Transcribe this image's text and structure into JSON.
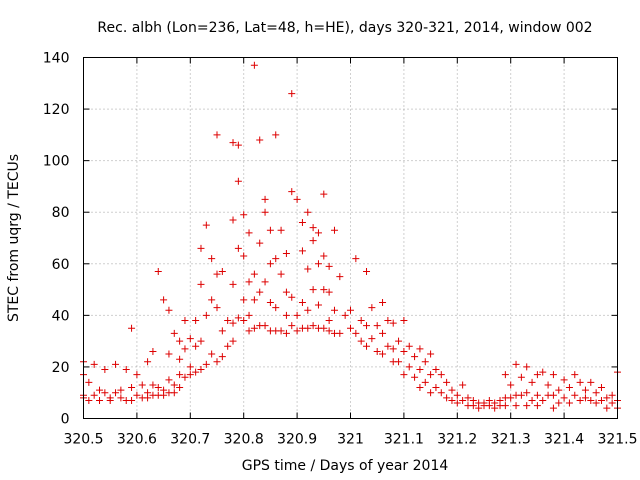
{
  "chart_data": {
    "type": "scatter",
    "title": "Rec. albh (Lon=236, Lat=48, h=HE), days 320-321, 2014, window 002",
    "xlabel": "GPS time / Days of year 2014",
    "ylabel": "STEC from uqrg / TECUs",
    "xlim": [
      320.5,
      321.5
    ],
    "ylim": [
      0,
      140
    ],
    "xticks": [
      "320.5",
      "320.6",
      "320.7",
      "320.8",
      "320.9",
      "321",
      "321.1",
      "321.2",
      "321.3",
      "321.4",
      "321.5"
    ],
    "yticks": [
      "0",
      "20",
      "40",
      "60",
      "80",
      "100",
      "120",
      "140"
    ],
    "grid": true,
    "marker": "+",
    "color": "#dd0000",
    "series": [
      {
        "name": "STEC",
        "points": [
          [
            320.5,
            22
          ],
          [
            320.5,
            17
          ],
          [
            320.5,
            9
          ],
          [
            320.5,
            8
          ],
          [
            320.51,
            14
          ],
          [
            320.51,
            7
          ],
          [
            320.52,
            21
          ],
          [
            320.52,
            9
          ],
          [
            320.53,
            11
          ],
          [
            320.53,
            7
          ],
          [
            320.54,
            19
          ],
          [
            320.54,
            10
          ],
          [
            320.55,
            8
          ],
          [
            320.55,
            7
          ],
          [
            320.56,
            21
          ],
          [
            320.56,
            10
          ],
          [
            320.57,
            11
          ],
          [
            320.57,
            8
          ],
          [
            320.58,
            19
          ],
          [
            320.58,
            7
          ],
          [
            320.59,
            12
          ],
          [
            320.59,
            7
          ],
          [
            320.6,
            17
          ],
          [
            320.6,
            9
          ],
          [
            320.61,
            13
          ],
          [
            320.61,
            8
          ],
          [
            320.62,
            10
          ],
          [
            320.62,
            8
          ],
          [
            320.63,
            13
          ],
          [
            320.63,
            9
          ],
          [
            320.64,
            12
          ],
          [
            320.64,
            9
          ],
          [
            320.65,
            11
          ],
          [
            320.65,
            9
          ],
          [
            320.66,
            15
          ],
          [
            320.66,
            10
          ],
          [
            320.67,
            13
          ],
          [
            320.67,
            10
          ],
          [
            320.68,
            17
          ],
          [
            320.68,
            12
          ],
          [
            320.59,
            35
          ],
          [
            320.62,
            22
          ],
          [
            320.63,
            26
          ],
          [
            320.64,
            57
          ],
          [
            320.65,
            46
          ],
          [
            320.66,
            42
          ],
          [
            320.66,
            25
          ],
          [
            320.67,
            33
          ],
          [
            320.68,
            30
          ],
          [
            320.68,
            23
          ],
          [
            320.69,
            38
          ],
          [
            320.69,
            27
          ],
          [
            320.69,
            16
          ],
          [
            320.7,
            31
          ],
          [
            320.7,
            20
          ],
          [
            320.7,
            17
          ],
          [
            320.71,
            38
          ],
          [
            320.71,
            28
          ],
          [
            320.71,
            18
          ],
          [
            320.72,
            66
          ],
          [
            320.72,
            52
          ],
          [
            320.72,
            30
          ],
          [
            320.72,
            19
          ],
          [
            320.73,
            75
          ],
          [
            320.73,
            40
          ],
          [
            320.73,
            21
          ],
          [
            320.74,
            62
          ],
          [
            320.74,
            46
          ],
          [
            320.74,
            25
          ],
          [
            320.75,
            110
          ],
          [
            320.75,
            56
          ],
          [
            320.75,
            43
          ],
          [
            320.75,
            22
          ],
          [
            320.76,
            57
          ],
          [
            320.76,
            34
          ],
          [
            320.76,
            24
          ],
          [
            320.77,
            38
          ],
          [
            320.77,
            28
          ],
          [
            320.78,
            107
          ],
          [
            320.78,
            77
          ],
          [
            320.78,
            52
          ],
          [
            320.78,
            37
          ],
          [
            320.78,
            30
          ],
          [
            320.79,
            106
          ],
          [
            320.79,
            92
          ],
          [
            320.79,
            66
          ],
          [
            320.79,
            39
          ],
          [
            320.8,
            79
          ],
          [
            320.8,
            63
          ],
          [
            320.8,
            46
          ],
          [
            320.8,
            38
          ],
          [
            320.81,
            72
          ],
          [
            320.81,
            53
          ],
          [
            320.81,
            40
          ],
          [
            320.81,
            34
          ],
          [
            320.82,
            137
          ],
          [
            320.82,
            56
          ],
          [
            320.82,
            46
          ],
          [
            320.82,
            35
          ],
          [
            320.83,
            108
          ],
          [
            320.83,
            68
          ],
          [
            320.83,
            49
          ],
          [
            320.83,
            36
          ],
          [
            320.84,
            85
          ],
          [
            320.84,
            80
          ],
          [
            320.84,
            53
          ],
          [
            320.84,
            36
          ],
          [
            320.85,
            73
          ],
          [
            320.85,
            60
          ],
          [
            320.85,
            45
          ],
          [
            320.85,
            34
          ],
          [
            320.86,
            110
          ],
          [
            320.86,
            62
          ],
          [
            320.86,
            43
          ],
          [
            320.86,
            34
          ],
          [
            320.87,
            73
          ],
          [
            320.87,
            56
          ],
          [
            320.87,
            34
          ],
          [
            320.88,
            64
          ],
          [
            320.88,
            49
          ],
          [
            320.88,
            40
          ],
          [
            320.88,
            33
          ],
          [
            320.89,
            126
          ],
          [
            320.89,
            88
          ],
          [
            320.89,
            47
          ],
          [
            320.89,
            36
          ],
          [
            320.9,
            85
          ],
          [
            320.9,
            40
          ],
          [
            320.9,
            34
          ],
          [
            320.91,
            76
          ],
          [
            320.91,
            65
          ],
          [
            320.91,
            45
          ],
          [
            320.91,
            35
          ],
          [
            320.92,
            80
          ],
          [
            320.92,
            58
          ],
          [
            320.92,
            42
          ],
          [
            320.92,
            35
          ],
          [
            320.93,
            74
          ],
          [
            320.93,
            69
          ],
          [
            320.93,
            50
          ],
          [
            320.93,
            36
          ],
          [
            320.94,
            72
          ],
          [
            320.94,
            60
          ],
          [
            320.94,
            44
          ],
          [
            320.94,
            35
          ],
          [
            320.95,
            87
          ],
          [
            320.95,
            63
          ],
          [
            320.95,
            50
          ],
          [
            320.95,
            35
          ],
          [
            320.96,
            59
          ],
          [
            320.96,
            49
          ],
          [
            320.96,
            38
          ],
          [
            320.96,
            34
          ],
          [
            320.97,
            73
          ],
          [
            320.97,
            42
          ],
          [
            320.97,
            33
          ],
          [
            320.98,
            55
          ],
          [
            320.98,
            33
          ],
          [
            320.99,
            40
          ],
          [
            321.0,
            42
          ],
          [
            321.0,
            35
          ],
          [
            321.01,
            62
          ],
          [
            321.01,
            33
          ],
          [
            321.02,
            38
          ],
          [
            321.02,
            30
          ],
          [
            321.03,
            57
          ],
          [
            321.03,
            36
          ],
          [
            321.03,
            28
          ],
          [
            321.04,
            43
          ],
          [
            321.04,
            31
          ],
          [
            321.05,
            36
          ],
          [
            321.05,
            26
          ],
          [
            321.06,
            45
          ],
          [
            321.06,
            33
          ],
          [
            321.06,
            25
          ],
          [
            321.07,
            38
          ],
          [
            321.07,
            28
          ],
          [
            321.08,
            37
          ],
          [
            321.08,
            27
          ],
          [
            321.08,
            22
          ],
          [
            321.09,
            30
          ],
          [
            321.09,
            22
          ],
          [
            321.1,
            38
          ],
          [
            321.1,
            26
          ],
          [
            321.1,
            17
          ],
          [
            321.11,
            28
          ],
          [
            321.11,
            20
          ],
          [
            321.12,
            24
          ],
          [
            321.12,
            16
          ],
          [
            321.13,
            27
          ],
          [
            321.13,
            19
          ],
          [
            321.13,
            12
          ],
          [
            321.14,
            22
          ],
          [
            321.14,
            14
          ],
          [
            321.15,
            25
          ],
          [
            321.15,
            17
          ],
          [
            321.15,
            10
          ],
          [
            321.16,
            19
          ],
          [
            321.16,
            12
          ],
          [
            321.17,
            17
          ],
          [
            321.17,
            10
          ],
          [
            321.18,
            14
          ],
          [
            321.18,
            8
          ],
          [
            321.19,
            11
          ],
          [
            321.19,
            7
          ],
          [
            321.2,
            9
          ],
          [
            321.2,
            6
          ],
          [
            321.21,
            13
          ],
          [
            321.21,
            7
          ],
          [
            321.22,
            8
          ],
          [
            321.22,
            5
          ],
          [
            321.23,
            7
          ],
          [
            321.23,
            5
          ],
          [
            321.24,
            6
          ],
          [
            321.24,
            4
          ],
          [
            321.25,
            6
          ],
          [
            321.25,
            5
          ],
          [
            321.26,
            7
          ],
          [
            321.26,
            5
          ],
          [
            321.27,
            6
          ],
          [
            321.27,
            4
          ],
          [
            321.28,
            7
          ],
          [
            321.28,
            5
          ],
          [
            321.29,
            17
          ],
          [
            321.29,
            8
          ],
          [
            321.29,
            5
          ],
          [
            321.3,
            13
          ],
          [
            321.3,
            8
          ],
          [
            321.31,
            21
          ],
          [
            321.31,
            9
          ],
          [
            321.31,
            5
          ],
          [
            321.32,
            16
          ],
          [
            321.32,
            9
          ],
          [
            321.33,
            20
          ],
          [
            321.33,
            10
          ],
          [
            321.33,
            5
          ],
          [
            321.34,
            14
          ],
          [
            321.34,
            7
          ],
          [
            321.35,
            17
          ],
          [
            321.35,
            9
          ],
          [
            321.35,
            5
          ],
          [
            321.36,
            18
          ],
          [
            321.36,
            7
          ],
          [
            321.37,
            13
          ],
          [
            321.37,
            9
          ],
          [
            321.38,
            17
          ],
          [
            321.38,
            9
          ],
          [
            321.38,
            4
          ],
          [
            321.39,
            11
          ],
          [
            321.39,
            6
          ],
          [
            321.4,
            15
          ],
          [
            321.4,
            8
          ],
          [
            321.41,
            12
          ],
          [
            321.41,
            6
          ],
          [
            321.42,
            17
          ],
          [
            321.42,
            9
          ],
          [
            321.43,
            14
          ],
          [
            321.43,
            7
          ],
          [
            321.44,
            11
          ],
          [
            321.44,
            8
          ],
          [
            321.45,
            14
          ],
          [
            321.45,
            7
          ],
          [
            321.46,
            10
          ],
          [
            321.46,
            6
          ],
          [
            321.47,
            12
          ],
          [
            321.47,
            7
          ],
          [
            321.48,
            8
          ],
          [
            321.48,
            4
          ],
          [
            321.49,
            9
          ],
          [
            321.49,
            6
          ],
          [
            321.5,
            18
          ],
          [
            321.5,
            7
          ],
          [
            321.5,
            4
          ]
        ]
      }
    ]
  }
}
